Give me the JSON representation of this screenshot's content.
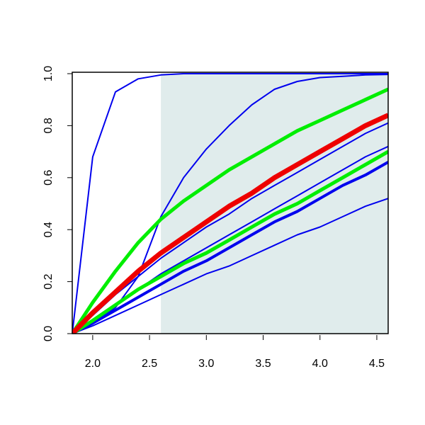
{
  "chart_data": {
    "type": "line",
    "x": [
      1.82,
      2.0,
      2.2,
      2.4,
      2.6,
      2.8,
      3.0,
      3.2,
      3.4,
      3.6,
      3.8,
      4.0,
      4.2,
      4.4,
      4.6
    ],
    "xlim": [
      1.82,
      4.6
    ],
    "ylim": [
      0,
      1
    ],
    "xticks": [
      {
        "value": 2.0,
        "label": "2.0"
      },
      {
        "value": 2.5,
        "label": "2.5"
      },
      {
        "value": 3.0,
        "label": "3.0"
      },
      {
        "value": 3.5,
        "label": "3.5"
      },
      {
        "value": 4.0,
        "label": "4.0"
      },
      {
        "value": 4.5,
        "label": "4.5"
      }
    ],
    "yticks": [
      {
        "value": 0,
        "label": "0.0"
      },
      {
        "value": 0.2,
        "label": "0.2"
      },
      {
        "value": 0.4,
        "label": "0.4"
      },
      {
        "value": 0.6,
        "label": "0.6"
      },
      {
        "value": 0.8,
        "label": "0.8"
      },
      {
        "value": 1,
        "label": "1.0"
      }
    ],
    "shade_from": 2.6,
    "shade_color": "#e0ecec",
    "series": [
      {
        "color": "#0000ee",
        "width": 2,
        "values": [
          0,
          0.68,
          0.93,
          0.98,
          0.995,
          1,
          1,
          1,
          1,
          1,
          1,
          1,
          1,
          1,
          1
        ]
      },
      {
        "color": "#0000ee",
        "width": 2,
        "values": [
          0,
          0.04,
          0.1,
          0.22,
          0.45,
          0.6,
          0.71,
          0.8,
          0.88,
          0.94,
          0.97,
          0.985,
          0.99,
          0.995,
          0.997
        ]
      },
      {
        "color": "#0000ee",
        "width": 2,
        "values": [
          0,
          0.03,
          0.07,
          0.11,
          0.15,
          0.19,
          0.23,
          0.26,
          0.3,
          0.34,
          0.38,
          0.41,
          0.45,
          0.49,
          0.52
        ]
      },
      {
        "color": "#0000ee",
        "width": 4,
        "values": [
          0,
          0.04,
          0.09,
          0.14,
          0.19,
          0.24,
          0.28,
          0.33,
          0.38,
          0.43,
          0.47,
          0.52,
          0.57,
          0.61,
          0.66
        ]
      },
      {
        "color": "#0000ee",
        "width": 2,
        "values": [
          0,
          0.05,
          0.11,
          0.17,
          0.23,
          0.28,
          0.33,
          0.38,
          0.43,
          0.48,
          0.53,
          0.58,
          0.63,
          0.68,
          0.72
        ]
      },
      {
        "color": "#0000ee",
        "width": 2,
        "values": [
          0,
          0.07,
          0.15,
          0.22,
          0.29,
          0.35,
          0.41,
          0.46,
          0.52,
          0.57,
          0.62,
          0.67,
          0.72,
          0.77,
          0.81
        ]
      },
      {
        "color": "#00ee00",
        "width": 5,
        "values": [
          0,
          0.05,
          0.11,
          0.17,
          0.22,
          0.27,
          0.31,
          0.36,
          0.41,
          0.46,
          0.5,
          0.55,
          0.6,
          0.65,
          0.7
        ]
      },
      {
        "color": "#00ee00",
        "width": 5,
        "values": [
          0,
          0.12,
          0.24,
          0.35,
          0.44,
          0.51,
          0.57,
          0.63,
          0.68,
          0.73,
          0.78,
          0.82,
          0.86,
          0.9,
          0.94
        ]
      },
      {
        "color": "#ee0000",
        "width": 7,
        "values": [
          0,
          0.08,
          0.16,
          0.24,
          0.31,
          0.37,
          0.43,
          0.49,
          0.54,
          0.6,
          0.65,
          0.7,
          0.75,
          0.8,
          0.84
        ]
      }
    ]
  }
}
